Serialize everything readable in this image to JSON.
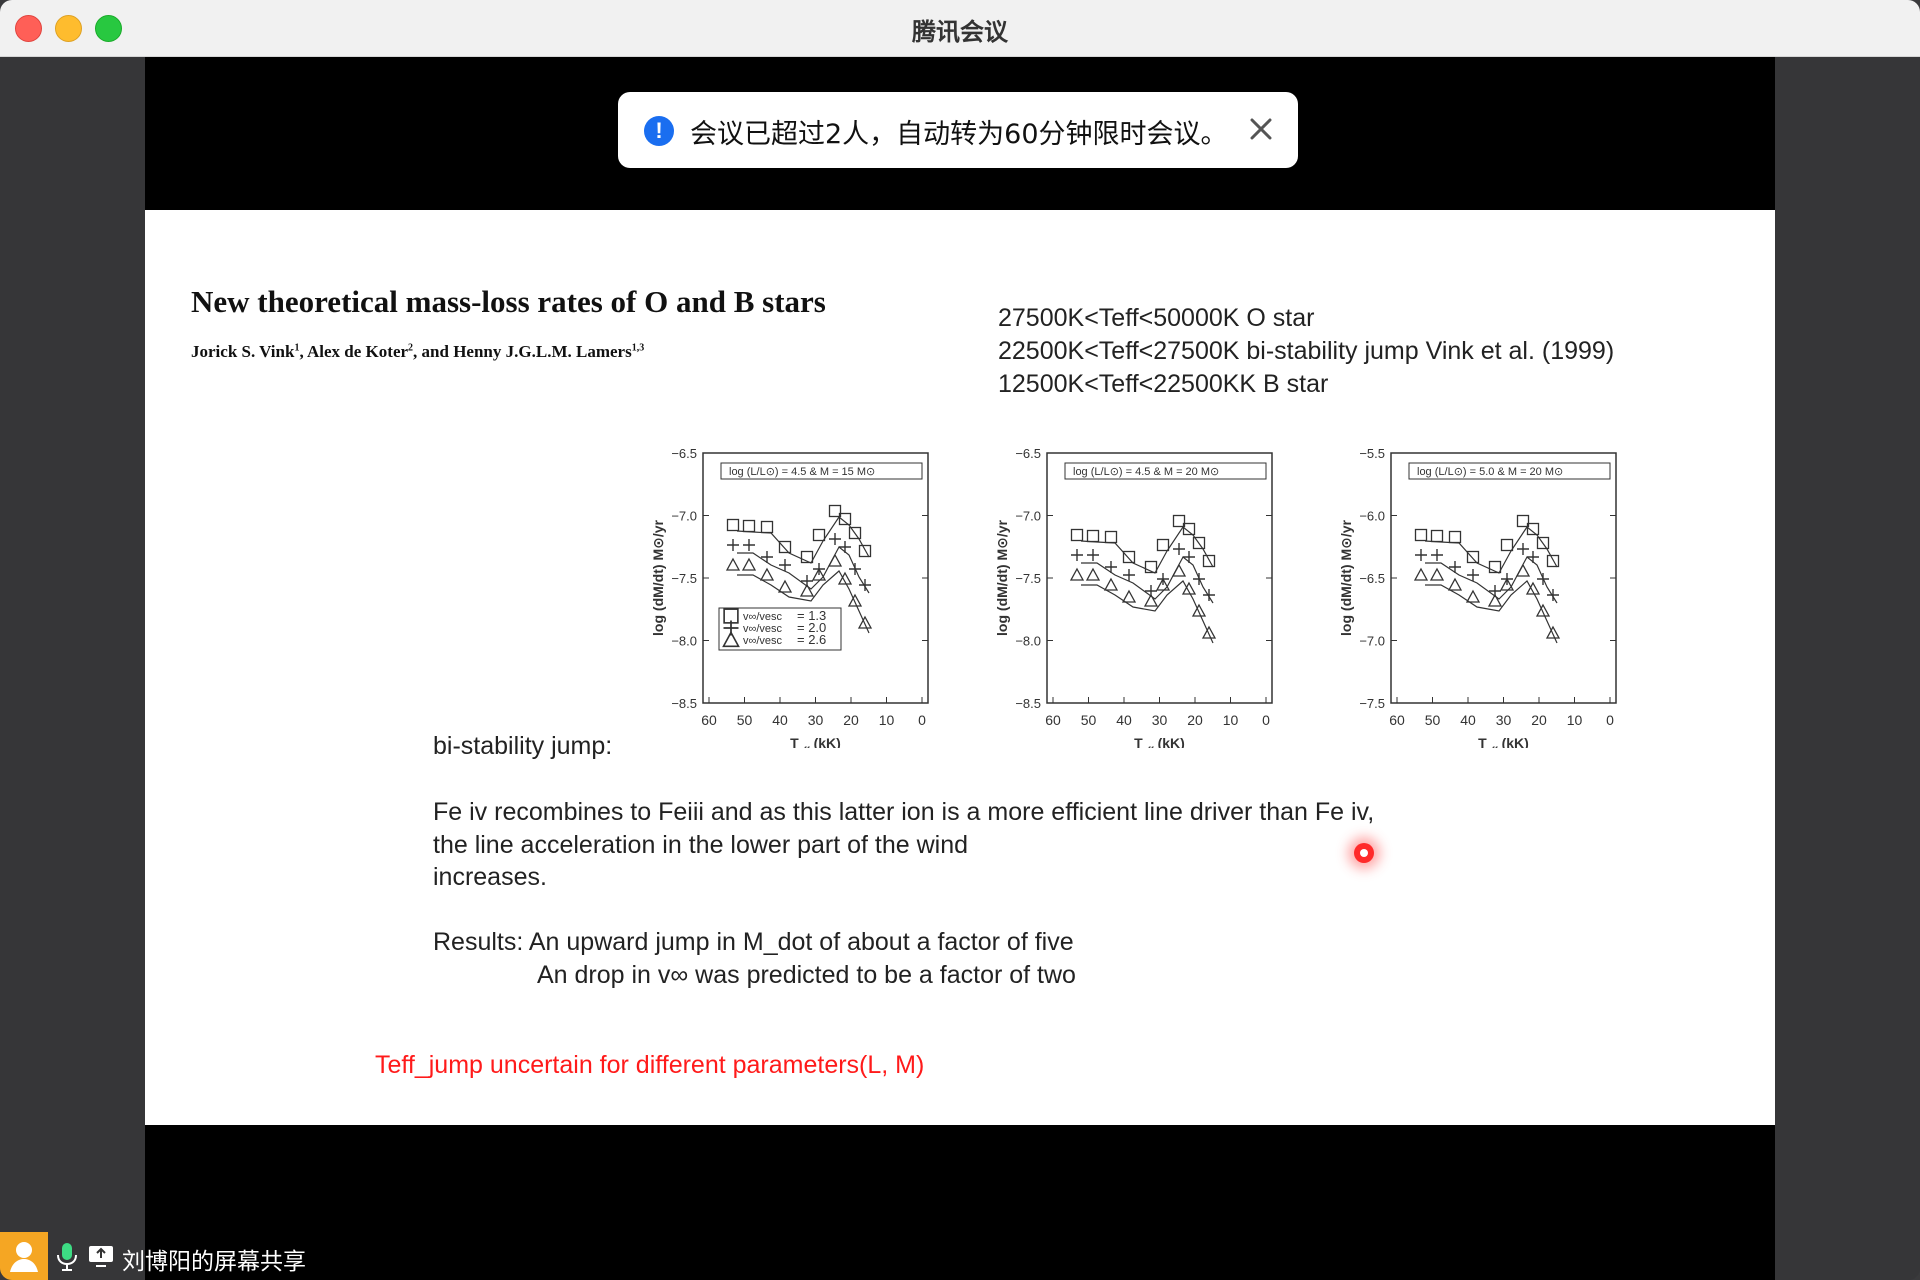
{
  "window": {
    "title": "腾讯会议"
  },
  "toast": {
    "message": "会议已超过2人，自动转为60分钟限时会议。",
    "icon": "info-icon",
    "close_icon": "close-icon"
  },
  "slide": {
    "paper_title": "New theoretical mass-loss rates of O and B stars",
    "authors": {
      "a1": "Jorick S. Vink",
      "a1_sup": "1",
      "sep1": ", Alex de Koter",
      "a2_sup": "2",
      "sep2": ", and Henny J.G.L.M. Lamers",
      "a3_sup": "1,3"
    },
    "temps": [
      "27500K<Teff<50000K  O star",
      "22500K<Teff<27500K bi-stability jump Vink et al. (1999)",
      "12500K<Teff<22500KK  B star"
    ],
    "figures": {
      "xlabel": "T",
      "xlabel_sub": "eff",
      "xlabel_unit": " (kK)",
      "ylabel": "log (dM/dt) M",
      "ylabel_sun": "⊙",
      "ylabel_unit": "/yr",
      "xticks": [
        "60",
        "50",
        "40",
        "30",
        "20",
        "10",
        "0"
      ],
      "panels": [
        {
          "legend": "log (L/L⊙) = 4.5  &  M = 15 M⊙",
          "yticks": [
            "−6.5",
            "−7.0",
            "−7.5",
            "−8.0",
            "−8.5"
          ]
        },
        {
          "legend": "log (L/L⊙) = 4.5  &  M = 20 M⊙",
          "yticks": [
            "−6.5",
            "−7.0",
            "−7.5",
            "−8.0",
            "−8.5"
          ]
        },
        {
          "legend": "log (L/L⊙) = 5.0  &  M = 20 M⊙",
          "yticks": [
            "−5.5",
            "−6.0",
            "−6.5",
            "−7.0",
            "−7.5"
          ]
        }
      ],
      "key": [
        {
          "label": "v∞/vesc",
          "value": "= 1.3"
        },
        {
          "label": "v∞/vesc",
          "value": "= 2.0"
        },
        {
          "label": "v∞/vesc",
          "value": "= 2.6"
        }
      ]
    },
    "bistab_heading": "bi-stability jump:",
    "para_lines": [
      "Fe iv recombines to Feiii and as this latter ion is a more efficient line driver than Fe iv,",
      "the line acceleration in the lower part of the wind",
      "increases."
    ],
    "results_line1": "Results: An upward jump in M_dot of about a factor of five",
    "results_line2": "An drop in v∞  was predicted to be a factor of two",
    "red_note": "Teff_jump uncertain for different parameters(L, M)",
    "accent_red": "#ff1a1a"
  },
  "bottom_bar": {
    "label": "刘博阳的屏幕共享",
    "icons": [
      "avatar-icon",
      "microphone-icon",
      "screen-share-icon"
    ]
  }
}
